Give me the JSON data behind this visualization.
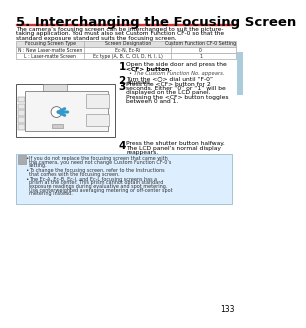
{
  "title": "5. Interchanging the Focusing Screen",
  "title_fontsize": 9.5,
  "intro_lines": [
    "The camera’s focusing screen can be interchanged to suit the picture-",
    "taking application. You must also set Custom Function CF-0 so that the",
    "standard exposure standard suits the focusing screen."
  ],
  "table_headers": [
    "Focusing Screen Type",
    "Screen Designation",
    "Custom Function CF-0 Setting"
  ],
  "table_rows": [
    [
      "N : New Laser-matte Screen",
      "Ec-N, Ec-Ri",
      "0"
    ],
    [
      "L : Laser-matte Screen",
      "Ec type (A, B, C, CII, D, H, I, L)",
      "1"
    ]
  ],
  "step1_lines": [
    "Open the side door and press the",
    "<CF> button.",
    "• The Custom Function No. appears."
  ],
  "step2_lines": [
    "Turn the <○> dial until “F-0”",
    "appears."
  ],
  "step3_lines": [
    "Press the <CF> button for 2",
    "seconds. Either “0” or “1” will be",
    "displayed on the LCD panel.",
    "Pressing the <CF> button toggles",
    "between 0 and 1."
  ],
  "step4_lines": [
    "Press the shutter button halfway.",
    "The LCD panel’s normal display",
    "reappears."
  ],
  "note_texts": [
    "If you do not replace the focusing screen that came with the camera, you need not change Custom Function CF-0’s setting.",
    "To change the focusing screen, refer to the Instructions that comes with the focusing screen.",
    "The Ec-A, Ec-B, Ec-I, and Ec-L focusing screens has a prism at the center. This prism cannot obtain standard exposure readings during evaluative and spot metering. Use centerweighted averaging metering or off-center spot metering instead."
  ],
  "page_num": "133",
  "bg_color": "#ffffff",
  "note_bg_color": "#ddeeff",
  "table_header_bg": "#e0e0e0",
  "accent_color": "#3399cc",
  "line_color": "#cc3333",
  "tab_color": "#aaccdd"
}
